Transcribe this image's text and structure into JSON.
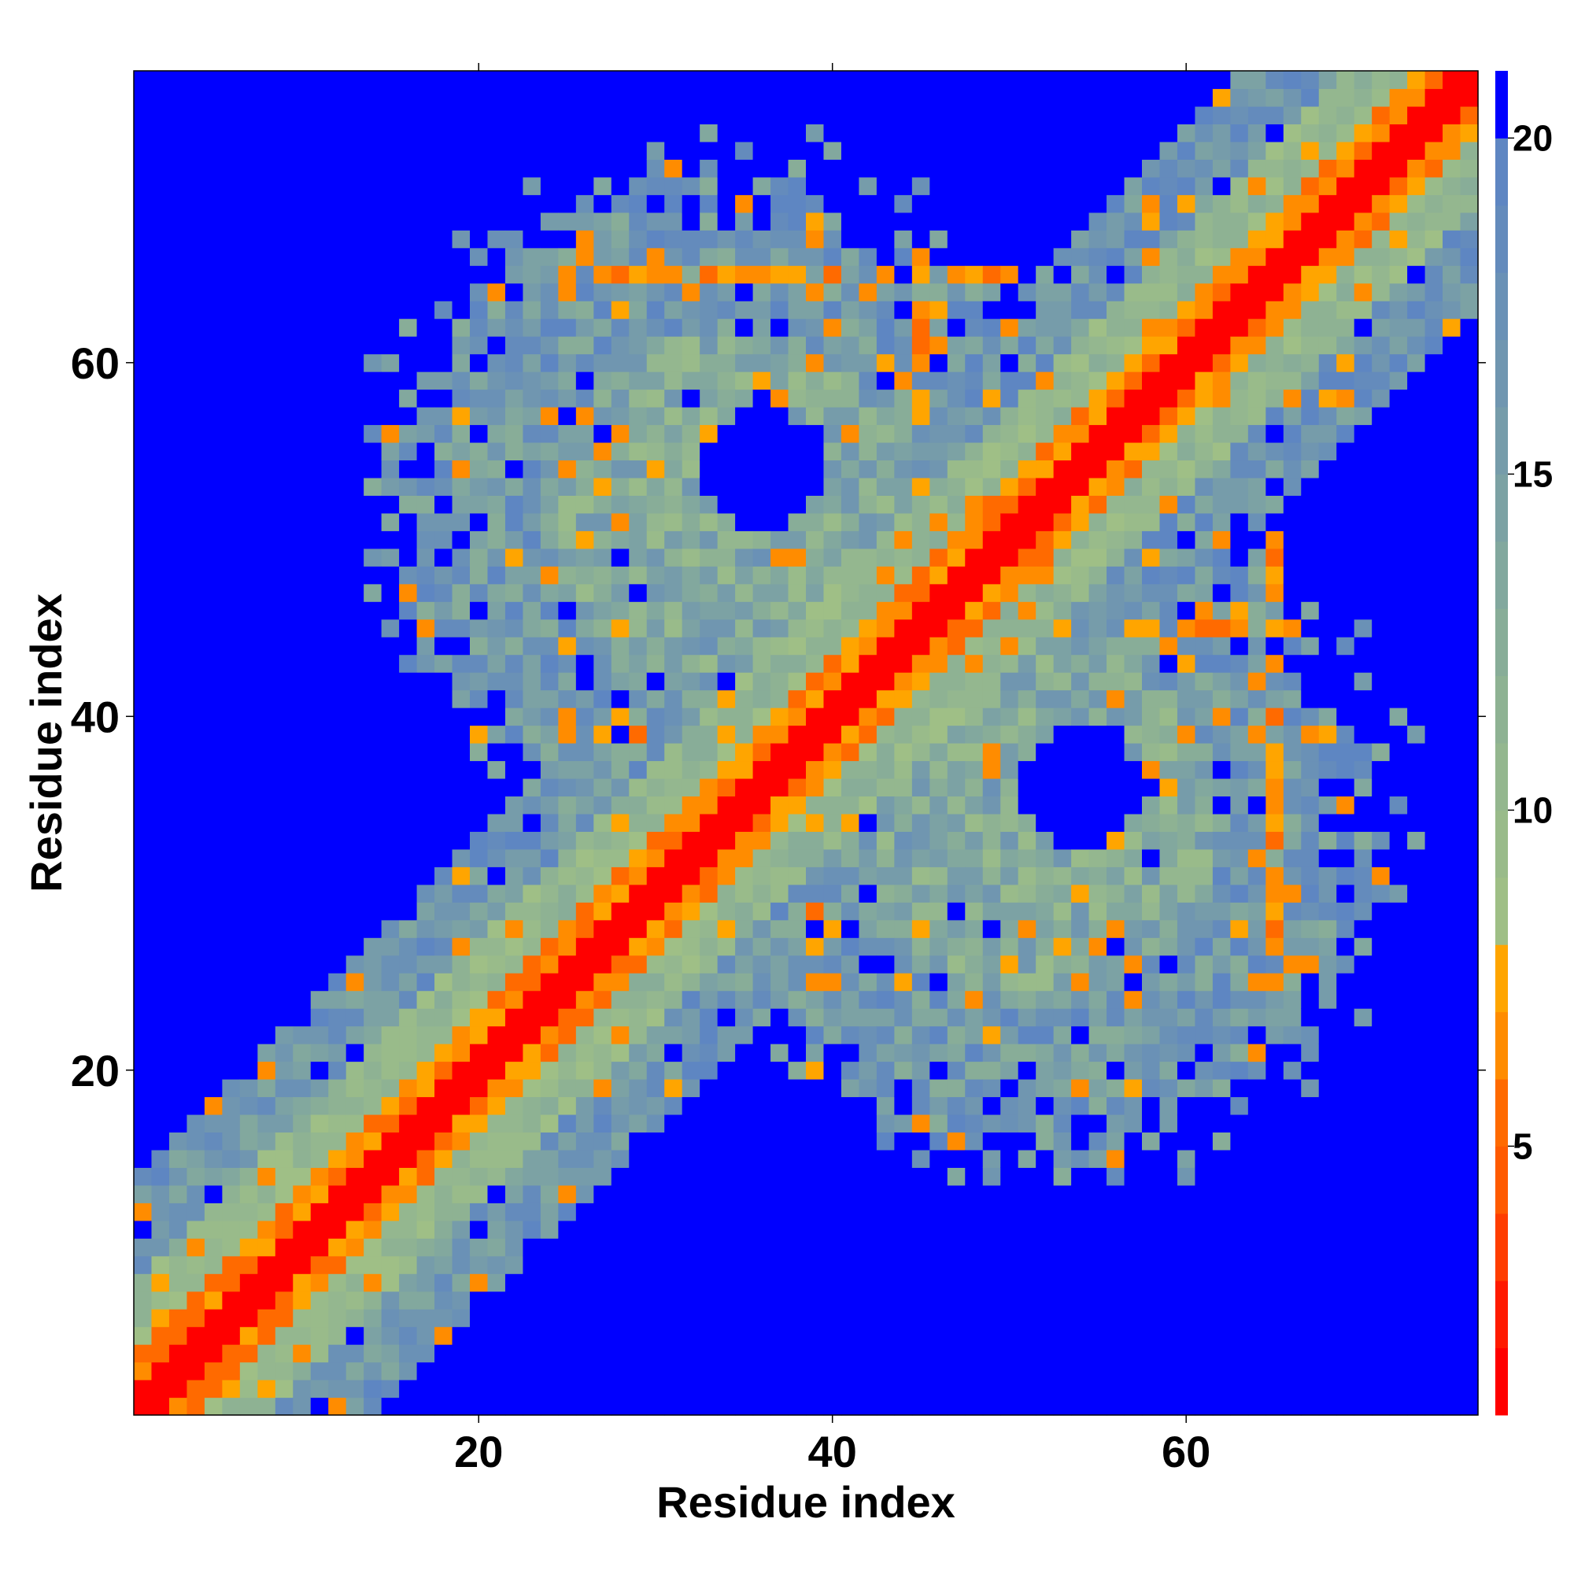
{
  "chart_data": {
    "type": "heatmap",
    "title": "",
    "xlabel": "Residue index",
    "ylabel": "Residue index",
    "n_residues": 76,
    "xlim": [
      0.5,
      76.5
    ],
    "ylim": [
      0.5,
      76.5
    ],
    "x_ticks": [
      20,
      40,
      60
    ],
    "y_ticks": [
      20,
      40,
      60
    ],
    "colorbar": {
      "range": [
        1,
        21
      ],
      "ticks": [
        5,
        10,
        15,
        20
      ],
      "bands": [
        {
          "from": 1,
          "to": 2,
          "color": "#ff0000"
        },
        {
          "from": 2,
          "to": 3,
          "color": "#ff1a00"
        },
        {
          "from": 3,
          "to": 4,
          "color": "#ff3d00"
        },
        {
          "from": 4,
          "to": 5,
          "color": "#ff5a00"
        },
        {
          "from": 5,
          "to": 6,
          "color": "#ff6a00"
        },
        {
          "from": 6,
          "to": 7,
          "color": "#ff8c00"
        },
        {
          "from": 7,
          "to": 8,
          "color": "#ffa500"
        },
        {
          "from": 8,
          "to": 9,
          "color": "#9fbf86"
        },
        {
          "from": 9,
          "to": 10,
          "color": "#99bb8a"
        },
        {
          "from": 10,
          "to": 11,
          "color": "#94b78f"
        },
        {
          "from": 11,
          "to": 12,
          "color": "#8eb293"
        },
        {
          "from": 12,
          "to": 13,
          "color": "#88ad98"
        },
        {
          "from": 13,
          "to": 14,
          "color": "#82a89e"
        },
        {
          "from": 14,
          "to": 15,
          "color": "#7ca2a4"
        },
        {
          "from": 15,
          "to": 16,
          "color": "#769caa"
        },
        {
          "from": 16,
          "to": 17,
          "color": "#7096b0"
        },
        {
          "from": 17,
          "to": 18,
          "color": "#6a91b6"
        },
        {
          "from": 18,
          "to": 19,
          "color": "#648bbc"
        },
        {
          "from": 19,
          "to": 20,
          "color": "#5e86c2"
        },
        {
          "from": 20,
          "to": 21,
          "color": "#0000ff"
        }
      ]
    },
    "diagonal_band": {
      "center_width": 2,
      "orange_width": 4,
      "green_width": 8,
      "blue_width": 14
    },
    "contact_regions": [
      {
        "name": "upper-left",
        "x_center": 34,
        "y_center": 52,
        "radius": 22
      },
      {
        "name": "lower-right",
        "x_center": 55,
        "y_center": 32,
        "radius": 21
      }
    ],
    "contact_lines": [
      {
        "x": [
          25,
          50
        ],
        "y": [
          65,
          65
        ]
      },
      {
        "x": [
          45,
          45
        ],
        "y": [
          56,
          66
        ]
      },
      {
        "x": [
          27,
          34
        ],
        "y": [
          39,
          39
        ]
      },
      {
        "x": [
          62,
          66
        ],
        "y": [
          46,
          46
        ]
      },
      {
        "x": [
          57,
          57
        ],
        "y": [
          46,
          49
        ]
      },
      {
        "x": [
          64,
          64
        ],
        "y": [
          33,
          40
        ]
      },
      {
        "x": [
          40,
          47
        ],
        "y": [
          29,
          29
        ]
      },
      {
        "x": [
          36,
          38
        ],
        "y": [
          31,
          35
        ]
      }
    ],
    "holes": [
      {
        "x_center": 36,
        "y_center": 54,
        "radius": 3.4
      },
      {
        "x_center": 53,
        "y_center": 35,
        "radius": 3.2
      }
    ]
  }
}
